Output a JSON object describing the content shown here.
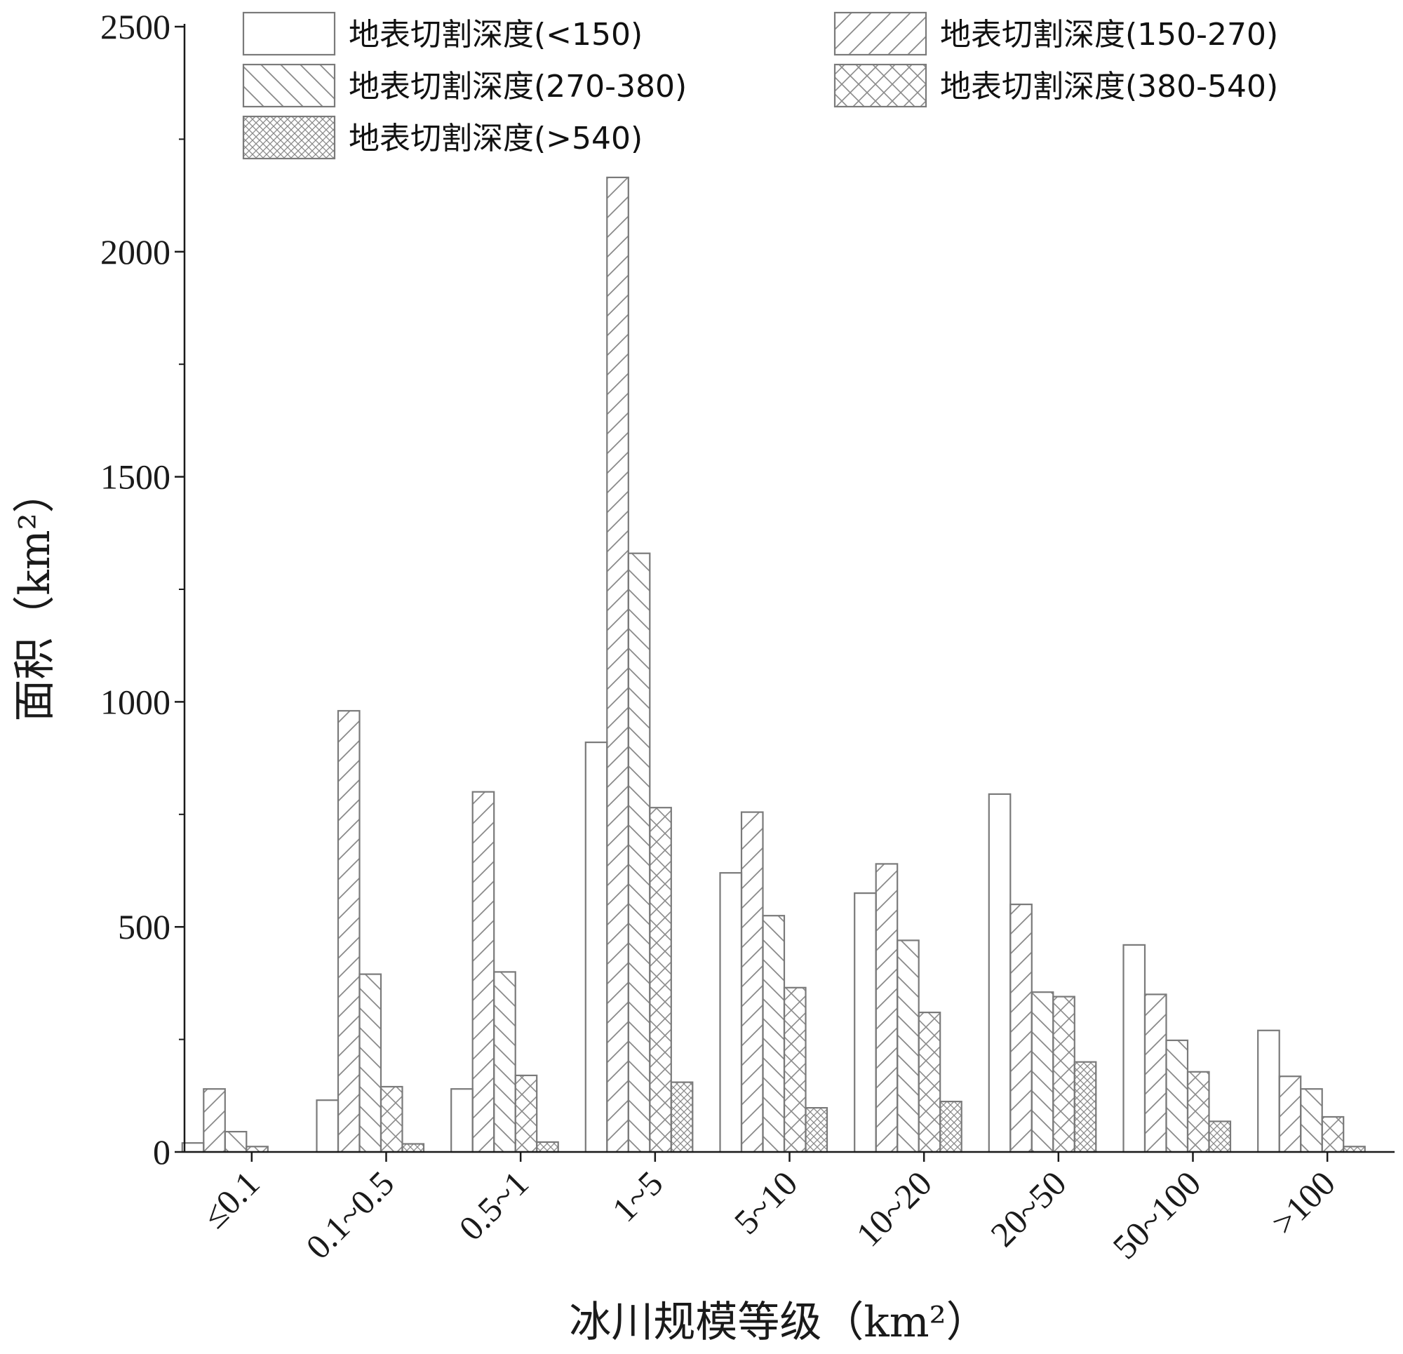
{
  "chart_data": {
    "type": "bar",
    "xlabel": "冰川规模等级（km²）",
    "ylabel": "面积（km²）",
    "ylim": [
      0,
      2500
    ],
    "yticks": [
      0,
      500,
      1000,
      1500,
      2000,
      2500
    ],
    "categories": [
      "≤0.1",
      "0.1~0.5",
      "0.5~1",
      "1~5",
      "5~10",
      "10~20",
      "20~50",
      "50~100",
      ">100"
    ],
    "series": [
      {
        "name": "地表切割深度(<150)",
        "pattern": "none",
        "values": [
          20,
          115,
          140,
          910,
          620,
          575,
          795,
          460,
          270
        ]
      },
      {
        "name": "地表切割深度(150-270)",
        "pattern": "forward-diagonal",
        "values": [
          140,
          980,
          800,
          2165,
          755,
          640,
          550,
          350,
          168
        ]
      },
      {
        "name": "地表切割深度(270-380)",
        "pattern": "back-diagonal",
        "values": [
          45,
          395,
          400,
          1330,
          525,
          470,
          355,
          248,
          140
        ]
      },
      {
        "name": "地表切割深度(380-540)",
        "pattern": "cross-diagonal",
        "values": [
          12,
          145,
          170,
          765,
          365,
          310,
          345,
          178,
          78
        ]
      },
      {
        "name": "地表切割深度(>540)",
        "pattern": "dense-cross",
        "values": [
          0,
          18,
          22,
          155,
          98,
          112,
          200,
          68,
          12
        ]
      }
    ],
    "legend_position": "top",
    "grid": false,
    "colors": {
      "outline": "#7a7a7a",
      "axis": "#1a1a1a",
      "background": "#ffffff"
    }
  }
}
